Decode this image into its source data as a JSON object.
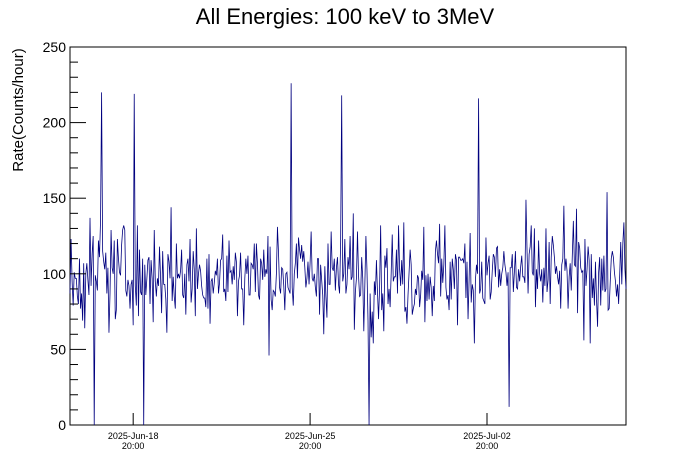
{
  "chart_data": {
    "type": "line",
    "title": "All Energies:  100 keV to 3MeV",
    "xlabel": "",
    "ylabel": "Rate(Counts/hour)",
    "ylim": [
      0,
      250
    ],
    "xlim": [
      "2025-Jun-16 08:00",
      "2025-Jul-08 08:00"
    ],
    "yticks": [
      0,
      50,
      100,
      150,
      200,
      250
    ],
    "xticks": [
      {
        "date": "2025-Jun-18",
        "time": "20:00"
      },
      {
        "date": "2025-Jun-25",
        "time": "20:00"
      },
      {
        "date": "2025-Jul-02",
        "time": "20:00"
      }
    ],
    "series_color": "#00007f",
    "grid": false,
    "series": [
      {
        "x_start": "2025-Jun-16 08:00",
        "x_step_hours": 1,
        "mean": 100,
        "typical_range": [
          45,
          160
        ],
        "peaks": [
          {
            "x": "2025-Jun-17 14:00",
            "y": 220
          },
          {
            "x": "2025-Jun-18 21:00",
            "y": 219
          },
          {
            "x": "2025-Jun-25 02:00",
            "y": 226
          },
          {
            "x": "2025-Jun-27 02:00",
            "y": 218
          },
          {
            "x": "2025-Jul-02 12:00",
            "y": 216
          }
        ],
        "dips": [
          {
            "x": "2025-Jun-17 07:00",
            "y": 0
          },
          {
            "x": "2025-Jun-19 06:00",
            "y": 0
          },
          {
            "x": "2025-Jun-28 04:00",
            "y": 0
          },
          {
            "x": "2025-Jul-03 17:00",
            "y": 12
          }
        ]
      }
    ]
  }
}
